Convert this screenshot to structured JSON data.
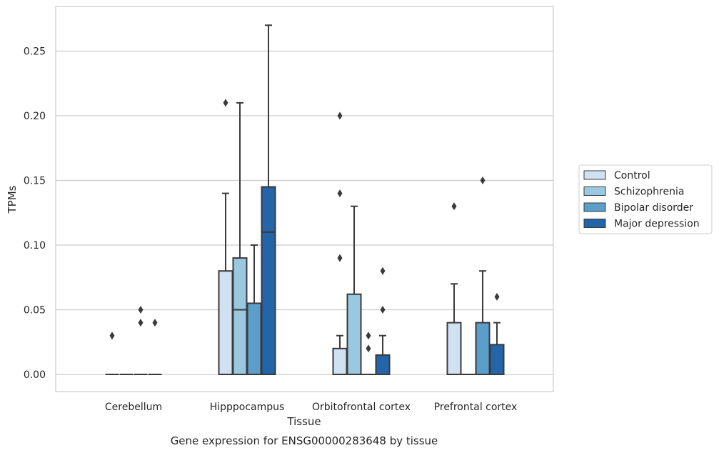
{
  "chart_data": {
    "type": "box",
    "xlabel": "Tissue",
    "ylabel": "TPMs",
    "caption": "Gene expression for ENSG00000283648 by tissue",
    "ylim": [
      -0.013,
      0.285
    ],
    "yticks": [
      "0.00",
      "0.05",
      "0.10",
      "0.15",
      "0.20",
      "0.25"
    ],
    "ytick_values": [
      0,
      0.05,
      0.1,
      0.15,
      0.2,
      0.25
    ],
    "grid": true,
    "legend_position": "right",
    "categories": [
      "Cerebellum",
      "Hipppocampus",
      "Orbitofrontal cortex",
      "Prefrontal cortex"
    ],
    "series": [
      {
        "name": "Control",
        "color": "#d0e1f2",
        "boxes": [
          {
            "q1": 0,
            "median": 0,
            "q3": 0,
            "whisker_low": 0,
            "whisker_high": 0,
            "outliers": [
              0.03
            ]
          },
          {
            "q1": 0,
            "median": 0,
            "q3": 0.08,
            "whisker_low": 0,
            "whisker_high": 0.14,
            "outliers": [
              0.21
            ]
          },
          {
            "q1": 0,
            "median": 0,
            "q3": 0.02,
            "whisker_low": 0,
            "whisker_high": 0.03,
            "outliers": [
              0.09,
              0.14,
              0.2
            ]
          },
          {
            "q1": 0,
            "median": 0,
            "q3": 0.04,
            "whisker_low": 0,
            "whisker_high": 0.07,
            "outliers": [
              0.13
            ]
          }
        ]
      },
      {
        "name": "Schizophrenia",
        "color": "#9ac8e0",
        "boxes": [
          {
            "q1": 0,
            "median": 0,
            "q3": 0,
            "whisker_low": 0,
            "whisker_high": 0,
            "outliers": []
          },
          {
            "q1": 0,
            "median": 0.05,
            "q3": 0.09,
            "whisker_low": 0,
            "whisker_high": 0.21,
            "outliers": []
          },
          {
            "q1": 0,
            "median": 0,
            "q3": 0.062,
            "whisker_low": 0,
            "whisker_high": 0.13,
            "outliers": []
          },
          {
            "q1": 0,
            "median": 0,
            "q3": 0,
            "whisker_low": 0,
            "whisker_high": 0,
            "outliers": []
          }
        ]
      },
      {
        "name": "Bipolar disorder",
        "color": "#5a9ec9",
        "boxes": [
          {
            "q1": 0,
            "median": 0,
            "q3": 0,
            "whisker_low": 0,
            "whisker_high": 0,
            "outliers": [
              0.04,
              0.05
            ]
          },
          {
            "q1": 0,
            "median": 0,
            "q3": 0.055,
            "whisker_low": 0,
            "whisker_high": 0.1,
            "outliers": []
          },
          {
            "q1": 0,
            "median": 0,
            "q3": 0,
            "whisker_low": 0,
            "whisker_high": 0,
            "outliers": [
              0.02,
              0.03
            ]
          },
          {
            "q1": 0,
            "median": 0,
            "q3": 0.04,
            "whisker_low": 0,
            "whisker_high": 0.08,
            "outliers": [
              0.15
            ]
          }
        ]
      },
      {
        "name": "Major depression",
        "color": "#2464a9",
        "boxes": [
          {
            "q1": 0,
            "median": 0,
            "q3": 0,
            "whisker_low": 0,
            "whisker_high": 0,
            "outliers": [
              0.04
            ]
          },
          {
            "q1": 0,
            "median": 0.11,
            "q3": 0.145,
            "whisker_low": 0,
            "whisker_high": 0.27,
            "outliers": []
          },
          {
            "q1": 0,
            "median": 0,
            "q3": 0.015,
            "whisker_low": 0,
            "whisker_high": 0.03,
            "outliers": [
              0.05,
              0.08
            ]
          },
          {
            "q1": 0,
            "median": 0,
            "q3": 0.023,
            "whisker_low": 0,
            "whisker_high": 0.04,
            "outliers": [
              0.06
            ]
          }
        ]
      }
    ]
  }
}
